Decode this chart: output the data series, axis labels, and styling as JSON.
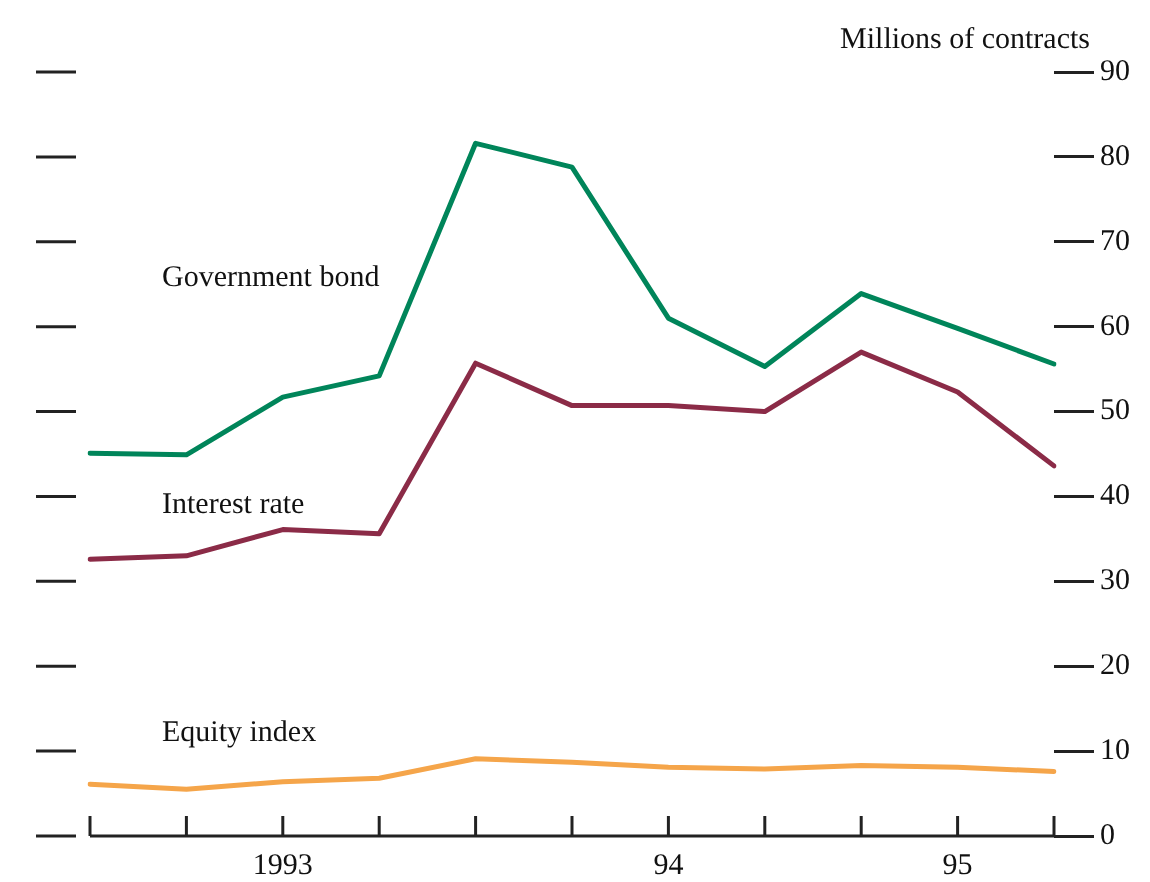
{
  "chart_data": {
    "type": "line",
    "ylabel": "Millions of contracts",
    "categories": [
      null,
      null,
      "1993",
      null,
      null,
      null,
      "94",
      null,
      null,
      "95",
      null
    ],
    "ylim": [
      0,
      90
    ],
    "yticks": [
      0,
      10,
      20,
      30,
      40,
      50,
      60,
      70,
      80,
      90
    ],
    "grid": false,
    "legend": false,
    "marker": "none",
    "line_style": "solid",
    "series": [
      {
        "name": "Government bond",
        "color": "#00855a",
        "values": [
          45.1,
          44.9,
          51.7,
          54.2,
          81.6,
          78.8,
          61.0,
          55.3,
          63.9,
          59.8,
          55.6
        ]
      },
      {
        "name": "Interest rate",
        "color": "#8b2b47",
        "values": [
          32.6,
          33.0,
          36.1,
          35.6,
          55.7,
          50.7,
          50.7,
          50.0,
          57.0,
          52.3,
          43.6
        ]
      },
      {
        "name": "Equity index",
        "color": "#f5a54a",
        "values": [
          6.1,
          5.5,
          6.4,
          6.8,
          9.1,
          8.7,
          8.1,
          7.9,
          8.3,
          8.1,
          7.6
        ]
      }
    ]
  }
}
